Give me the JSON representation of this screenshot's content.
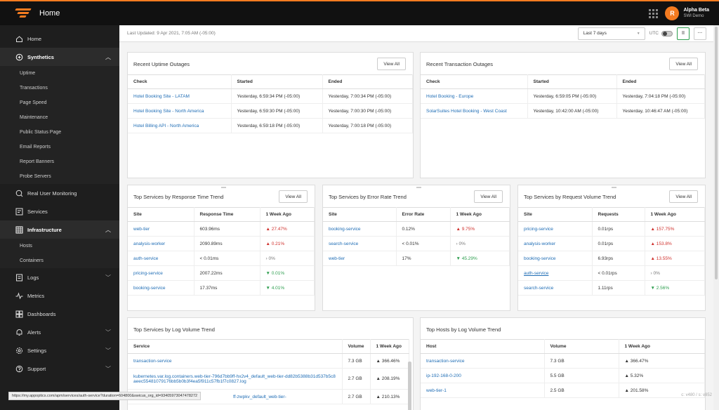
{
  "app": {
    "title": "Home"
  },
  "user": {
    "initial": "R",
    "name": "Alpha Beta",
    "org": "SWI Demo"
  },
  "sidebar": {
    "items": [
      {
        "name": "home",
        "label": "Home",
        "icon": "home-icon"
      },
      {
        "name": "synthetics",
        "label": "Synthetics",
        "icon": "synthetics-icon",
        "chevron": "︿"
      },
      {
        "name": "real-user-monitoring",
        "label": "Real User Monitoring",
        "icon": "rum-icon"
      },
      {
        "name": "services",
        "label": "Services",
        "icon": "services-icon"
      },
      {
        "name": "infrastructure",
        "label": "Infrastructure",
        "icon": "infrastructure-icon",
        "chevron": "︿"
      },
      {
        "name": "logs",
        "label": "Logs",
        "icon": "logs-icon",
        "chevron": "﹀"
      },
      {
        "name": "metrics",
        "label": "Metrics",
        "icon": "metrics-icon"
      },
      {
        "name": "dashboards",
        "label": "Dashboards",
        "icon": "dashboards-icon"
      },
      {
        "name": "alerts",
        "label": "Alerts",
        "icon": "bell-icon",
        "chevron": "﹀"
      },
      {
        "name": "settings",
        "label": "Settings",
        "icon": "gear-icon",
        "chevron": "﹀"
      },
      {
        "name": "support",
        "label": "Support",
        "icon": "help-icon",
        "chevron": "﹀"
      }
    ],
    "synthetics_sub": [
      "Uptime",
      "Transactions",
      "Page Speed",
      "Maintenance",
      "Public Status Page",
      "Email Reports",
      "Report Banners",
      "Probe Servers"
    ],
    "infrastructure_sub": [
      "Hosts",
      "Containers"
    ]
  },
  "subbar": {
    "last_updated": "Last Updated: 9 Apr 2021, 7:05 AM (-05:00)",
    "range": "Last 7 days",
    "utc": "UTC",
    "pause": "II",
    "more": "···"
  },
  "uptime_outages": {
    "title": "Recent Uptime Outages",
    "view_all": "View All",
    "headers": [
      "Check",
      "Started",
      "Ended"
    ],
    "rows": [
      [
        "Hotel Booking Site - LATAM",
        "Yesterday, 6:59:34 PM (-05:00)",
        "Yesterday, 7:00:34 PM (-05:00)"
      ],
      [
        "Hotel Booking Site - North America",
        "Yesterday, 6:59:30 PM (-05:00)",
        "Yesterday, 7:00:30 PM (-05:00)"
      ],
      [
        "Hotel Billing API - North America",
        "Yesterday, 6:59:18 PM (-05:00)",
        "Yesterday, 7:00:18 PM (-05:00)"
      ]
    ]
  },
  "transaction_outages": {
    "title": "Recent Transaction Outages",
    "view_all": "View All",
    "headers": [
      "Check",
      "Started",
      "Ended"
    ],
    "rows": [
      [
        "Hotel Booking - Europe",
        "Yesterday, 6:59:05 PM (-05:00)",
        "Yesterday, 7:04:18 PM (-05:00)"
      ],
      [
        "SolarSuites Hotel Booking - West Coast",
        "Yesterday, 10:42:00 AM (-05:00)",
        "Yesterday, 10:46:47 AM (-05:00)"
      ]
    ]
  },
  "response_time": {
    "title": "Top Services by Response Time Trend",
    "view_all": "View All",
    "headers": [
      "Site",
      "Response Time",
      "1 Week Ago"
    ],
    "rows": [
      [
        "web-tier",
        "603.96ms",
        "▲ 27.47%",
        "up"
      ],
      [
        "analysis-worker",
        "2090.89ms",
        "▲ 0.21%",
        "up"
      ],
      [
        "auth-service",
        "< 0.01ms",
        "› 0%",
        "flat"
      ],
      [
        "pricing-service",
        "2007.22ms",
        "▼ 0.01%",
        "down"
      ],
      [
        "booking-service",
        "17.37ms",
        "▼ 4.01%",
        "down"
      ]
    ]
  },
  "error_rate": {
    "title": "Top Services by Error Rate Trend",
    "view_all": "View All",
    "headers": [
      "Site",
      "Error Rate",
      "1 Week Ago"
    ],
    "rows": [
      [
        "booking-service",
        "0.12%",
        "▲ 9.75%",
        "up"
      ],
      [
        "search-service",
        "< 0.01%",
        "› 0%",
        "flat"
      ],
      [
        "web-tier",
        "17%",
        "▼ 45.29%",
        "down"
      ]
    ]
  },
  "request_volume": {
    "title": "Top Services by Request Volume Trend",
    "view_all": "View All",
    "headers": [
      "Site",
      "Requests",
      "1 Week Ago"
    ],
    "rows": [
      [
        "pricing-service",
        "0.01rps",
        "▲ 157.75%",
        "up"
      ],
      [
        "analysis-worker",
        "0.01rps",
        "▲ 153.8%",
        "up"
      ],
      [
        "booking-service",
        "6.93rps",
        "▲ 13.55%",
        "up"
      ],
      [
        "auth-service",
        "< 0.01rps",
        "› 0%",
        "flat"
      ],
      [
        "search-service",
        "1.11rps",
        "▼ 2.56%",
        "down"
      ]
    ]
  },
  "log_services": {
    "title": "Top Services by Log Volume Trend",
    "headers": [
      "Service",
      "Volume",
      "1 Week Ago"
    ],
    "rows": [
      [
        "transaction-service",
        "7.3 GB",
        "▲ 366.46%",
        "up"
      ],
      [
        "kubernetes.var.log.containers.web-tier-796d7bb9ff-hx2v4_default_web-tier-dd82b5388b31d537b5c8aeec55481079176bb5b0b3f4ea5f911c57fb1f7c0827.log",
        "2.7 GB",
        "▲ 208.19%",
        "up"
      ],
      [
        "ff-zwpkv_default_web-tier-",
        "2.7 GB",
        "▲ 210.13%",
        "up"
      ]
    ]
  },
  "log_hosts": {
    "title": "Top Hosts by Log Volume Trend",
    "headers": [
      "Host",
      "Volume",
      "1 Week Ago"
    ],
    "rows": [
      [
        "transaction-service",
        "7.3 GB",
        "▲ 366.47%",
        "up"
      ],
      [
        "ip-192-168-0-200",
        "5.5 GB",
        "▲ 5.32%",
        "up"
      ],
      [
        "web-tier-1",
        "2.5 GB",
        "▲ 201.58%",
        "up"
      ]
    ]
  },
  "status_url": "https://my.appoptics.com/apm/services/auth-service?duration=604800&swicus_org_id=93405973047478272",
  "version": "c: v480 / s: v852",
  "colors": {
    "accent": "#f47b20",
    "link": "#1f6db5",
    "up": "#d0312d",
    "down": "#2e9e4f"
  }
}
